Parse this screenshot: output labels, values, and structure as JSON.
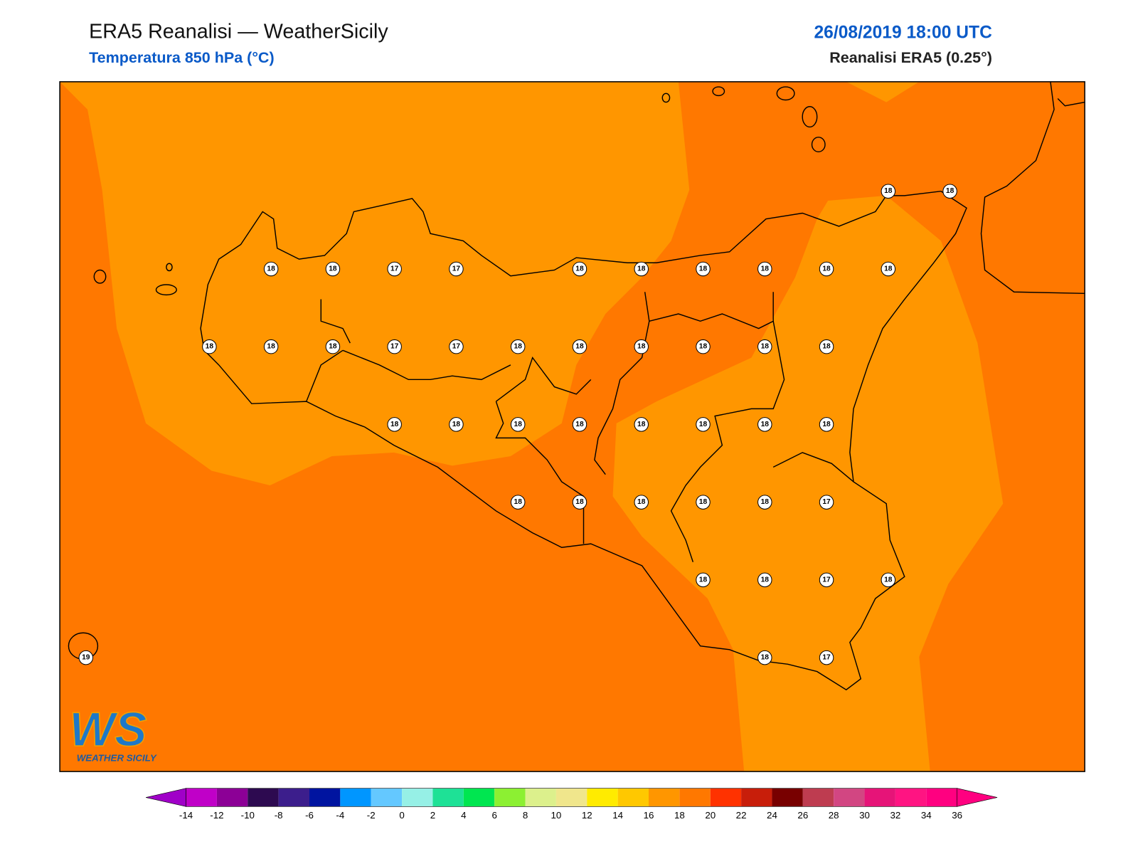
{
  "header": {
    "title": "ERA5 Reanalisi — WeatherSicily",
    "subtitle": "Temperatura 850 hPa (°C)",
    "date": "26/08/2019 18:00 UTC",
    "source": "Reanalisi ERA5 (0.25°)"
  },
  "stations": {
    "rows": [
      [
        null,
        null,
        null,
        null,
        null,
        null,
        null,
        null,
        null,
        null,
        null,
        null,
        null,
        18,
        18
      ],
      [
        null,
        null,
        null,
        18,
        18,
        17,
        17,
        null,
        18,
        18,
        18,
        18,
        18,
        18,
        null
      ],
      [
        null,
        null,
        18,
        18,
        18,
        17,
        17,
        18,
        18,
        18,
        18,
        18,
        18,
        null,
        null
      ],
      [
        null,
        null,
        null,
        null,
        null,
        18,
        18,
        18,
        18,
        18,
        18,
        18,
        18,
        null,
        null
      ],
      [
        null,
        null,
        null,
        null,
        null,
        null,
        null,
        18,
        18,
        18,
        18,
        18,
        17,
        null,
        null
      ],
      [
        null,
        null,
        null,
        null,
        null,
        null,
        null,
        null,
        null,
        null,
        18,
        18,
        17,
        18,
        null
      ],
      [
        19,
        null,
        null,
        null,
        null,
        null,
        null,
        null,
        null,
        null,
        null,
        18,
        17,
        null,
        null
      ]
    ]
  },
  "colorbar": {
    "ticks": [
      -14,
      -12,
      -10,
      -8,
      -6,
      -4,
      -2,
      0,
      2,
      4,
      6,
      8,
      10,
      12,
      14,
      16,
      18,
      20,
      22,
      24,
      26,
      28,
      30,
      32,
      34,
      36
    ],
    "colors": [
      "#c000c8",
      "#8c0096",
      "#2d0a50",
      "#3c1e8c",
      "#0014a0",
      "#0096ff",
      "#64c8ff",
      "#96f0e6",
      "#1ee196",
      "#00e650",
      "#8cf032",
      "#dcf08c",
      "#f0e68c",
      "#ffeb00",
      "#ffc800",
      "#ff9600",
      "#ff7800",
      "#ff3200",
      "#c81e0a",
      "#780000",
      "#be3c50",
      "#d24682",
      "#e61478",
      "#ff1482",
      "#ff0080"
    ],
    "under": "#a000c8",
    "over": "#ff0080"
  },
  "logo": {
    "mark": "WS",
    "name": "WEATHER SICILY"
  }
}
